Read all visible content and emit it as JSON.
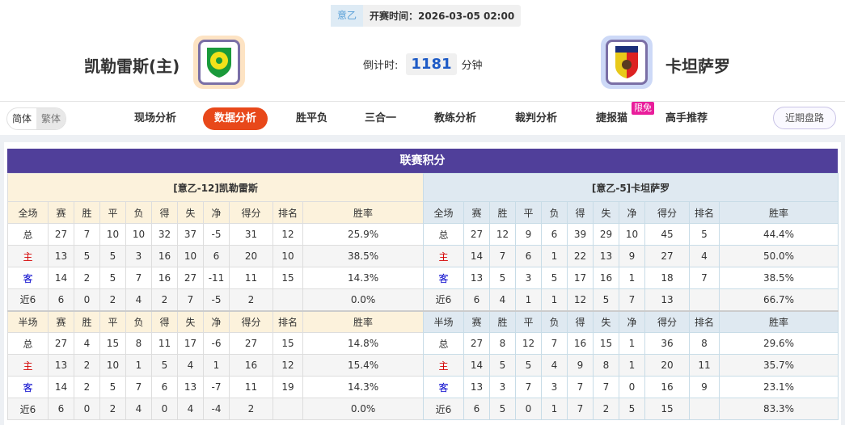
{
  "header": {
    "league": "意乙",
    "kickoff_label": "开赛时间：",
    "kickoff": "2026-03-05 02:00",
    "home_team": "凯勒雷斯(主)",
    "away_team": "卡坦萨罗",
    "countdown_label": "倒计时:",
    "countdown": "1181",
    "countdown_unit": "分钟"
  },
  "lang": {
    "simplified": "简体",
    "traditional": "繁体"
  },
  "nav": {
    "items": [
      "现场分析",
      "数据分析",
      "胜平负",
      "三合一",
      "教练分析",
      "裁判分析",
      "捷报猫",
      "高手推荐"
    ],
    "active": "数据分析",
    "badge": "限免",
    "recent": "近期盘路"
  },
  "colors": {
    "title_bg": "#503f9a",
    "active_tab": "#e8481a",
    "home_header": "#fcf2dc",
    "away_header": "#dfe9f1"
  },
  "standings": {
    "title": "联赛积分",
    "columns": [
      "赛",
      "胜",
      "平",
      "负",
      "得",
      "失",
      "净",
      "得分",
      "排名",
      "胜率"
    ],
    "home": {
      "team": "[意乙-12]凯勒雷斯",
      "full": {
        "label": "全场",
        "rows": [
          [
            "总",
            "27",
            "7",
            "10",
            "10",
            "32",
            "37",
            "-5",
            "31",
            "12",
            "25.9%"
          ],
          [
            "主",
            "13",
            "5",
            "5",
            "3",
            "16",
            "10",
            "6",
            "20",
            "10",
            "38.5%"
          ],
          [
            "客",
            "14",
            "2",
            "5",
            "7",
            "16",
            "27",
            "-11",
            "11",
            "15",
            "14.3%"
          ],
          [
            "近6",
            "6",
            "0",
            "2",
            "4",
            "2",
            "7",
            "-5",
            "2",
            "",
            "0.0%"
          ]
        ]
      },
      "half": {
        "label": "半场",
        "rows": [
          [
            "总",
            "27",
            "4",
            "15",
            "8",
            "11",
            "17",
            "-6",
            "27",
            "15",
            "14.8%"
          ],
          [
            "主",
            "13",
            "2",
            "10",
            "1",
            "5",
            "4",
            "1",
            "16",
            "12",
            "15.4%"
          ],
          [
            "客",
            "14",
            "2",
            "5",
            "7",
            "6",
            "13",
            "-7",
            "11",
            "19",
            "14.3%"
          ],
          [
            "近6",
            "6",
            "0",
            "2",
            "4",
            "0",
            "4",
            "-4",
            "2",
            "",
            "0.0%"
          ]
        ]
      }
    },
    "away": {
      "team": "[意乙-5]卡坦萨罗",
      "full": {
        "label": "全场",
        "rows": [
          [
            "总",
            "27",
            "12",
            "9",
            "6",
            "39",
            "29",
            "10",
            "45",
            "5",
            "44.4%"
          ],
          [
            "主",
            "14",
            "7",
            "6",
            "1",
            "22",
            "13",
            "9",
            "27",
            "4",
            "50.0%"
          ],
          [
            "客",
            "13",
            "5",
            "3",
            "5",
            "17",
            "16",
            "1",
            "18",
            "7",
            "38.5%"
          ],
          [
            "近6",
            "6",
            "4",
            "1",
            "1",
            "12",
            "5",
            "7",
            "13",
            "",
            "66.7%"
          ]
        ]
      },
      "half": {
        "label": "半场",
        "rows": [
          [
            "总",
            "27",
            "8",
            "12",
            "7",
            "16",
            "15",
            "1",
            "36",
            "8",
            "29.6%"
          ],
          [
            "主",
            "14",
            "5",
            "5",
            "4",
            "9",
            "8",
            "1",
            "20",
            "11",
            "35.7%"
          ],
          [
            "客",
            "13",
            "3",
            "7",
            "3",
            "7",
            "7",
            "0",
            "16",
            "9",
            "23.1%"
          ],
          [
            "近6",
            "6",
            "5",
            "0",
            "1",
            "7",
            "2",
            "5",
            "15",
            "",
            "83.3%"
          ]
        ]
      }
    }
  }
}
